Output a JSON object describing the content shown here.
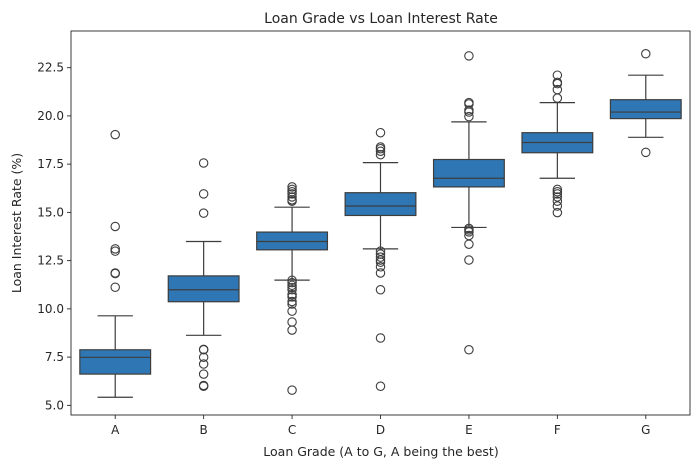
{
  "chart_data": {
    "type": "box",
    "title": "Loan Grade vs Loan Interest Rate",
    "xlabel": "Loan Grade (A to G, A being the best)",
    "ylabel": "Loan Interest Rate (%)",
    "ylim": [
      4.5,
      24.4
    ],
    "yticks": [
      "5.0",
      "7.5",
      "10.0",
      "12.5",
      "15.0",
      "17.5",
      "20.0",
      "22.5"
    ],
    "grid": false,
    "box_color": "#2e77b4",
    "line_color": "#3d3d3d",
    "categories": [
      "A",
      "B",
      "C",
      "D",
      "E",
      "F",
      "G"
    ],
    "boxes": [
      {
        "category": "A",
        "whisker_low": 5.42,
        "q1": 6.62,
        "median": 7.49,
        "q3": 7.88,
        "whisker_high": 9.64,
        "outliers": [
          11.12,
          11.83,
          11.86,
          12.99,
          13.11,
          14.27,
          19.03
        ]
      },
      {
        "category": "B",
        "whisker_low": 8.63,
        "q1": 10.37,
        "median": 10.99,
        "q3": 11.71,
        "whisker_high": 13.49,
        "outliers": [
          5.99,
          6.03,
          6.62,
          7.14,
          7.49,
          7.88,
          7.9,
          14.96,
          15.96,
          17.56
        ]
      },
      {
        "category": "C",
        "whisker_low": 11.49,
        "q1": 13.06,
        "median": 13.49,
        "q3": 13.98,
        "whisker_high": 15.27,
        "outliers": [
          5.79,
          8.9,
          9.32,
          9.88,
          10.25,
          10.38,
          10.62,
          10.74,
          10.99,
          11.11,
          11.22,
          11.36,
          11.48,
          15.58,
          15.65,
          15.8,
          15.96,
          16.07,
          16.19,
          16.32
        ]
      },
      {
        "category": "D",
        "whisker_low": 13.11,
        "q1": 14.84,
        "median": 15.33,
        "q3": 16.02,
        "whisker_high": 17.58,
        "outliers": [
          5.99,
          8.49,
          10.99,
          11.86,
          12.18,
          12.42,
          12.53,
          12.68,
          12.84,
          12.99,
          17.99,
          18.17,
          18.3,
          18.39,
          19.13
        ]
      },
      {
        "category": "E",
        "whisker_low": 14.22,
        "q1": 16.32,
        "median": 16.77,
        "q3": 17.74,
        "whisker_high": 19.69,
        "outliers": [
          7.88,
          12.53,
          13.35,
          13.8,
          13.99,
          14.09,
          14.17,
          19.96,
          20.2,
          20.3,
          20.62,
          20.69,
          23.11
        ]
      },
      {
        "category": "F",
        "whisker_low": 16.77,
        "q1": 18.09,
        "median": 18.62,
        "q3": 19.13,
        "whisker_high": 20.69,
        "outliers": [
          14.99,
          15.33,
          15.58,
          15.8,
          15.96,
          16.07,
          16.19,
          20.92,
          21.36,
          21.67,
          21.74,
          22.11
        ]
      },
      {
        "category": "G",
        "whisker_low": 18.89,
        "q1": 19.86,
        "median": 20.2,
        "q3": 20.84,
        "whisker_high": 22.11,
        "outliers": [
          18.11,
          23.22
        ]
      }
    ]
  }
}
